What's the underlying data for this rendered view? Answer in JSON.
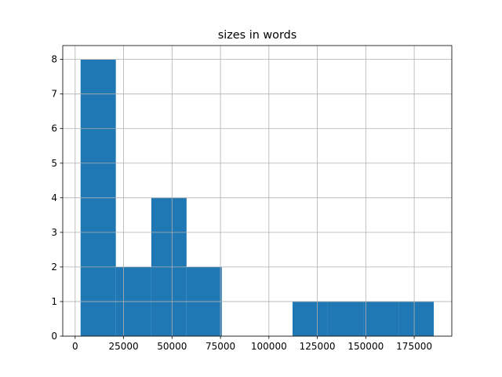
{
  "chart_data": {
    "type": "histogram",
    "title": "sizes in words",
    "bins": [
      2800,
      21000,
      39300,
      57500,
      75700,
      94000,
      112200,
      130400,
      148700,
      166900,
      185100
    ],
    "values": [
      8,
      2,
      4,
      2,
      0,
      0,
      1,
      1,
      1,
      1
    ],
    "color": "#1f77b4",
    "xlim": [
      -6400,
      194400
    ],
    "xticks": [
      0,
      25000,
      50000,
      75000,
      100000,
      125000,
      150000,
      175000
    ],
    "ylim": [
      0,
      8.4
    ],
    "yticks": [
      0,
      1,
      2,
      3,
      4,
      5,
      6,
      7,
      8
    ],
    "grid": true
  }
}
